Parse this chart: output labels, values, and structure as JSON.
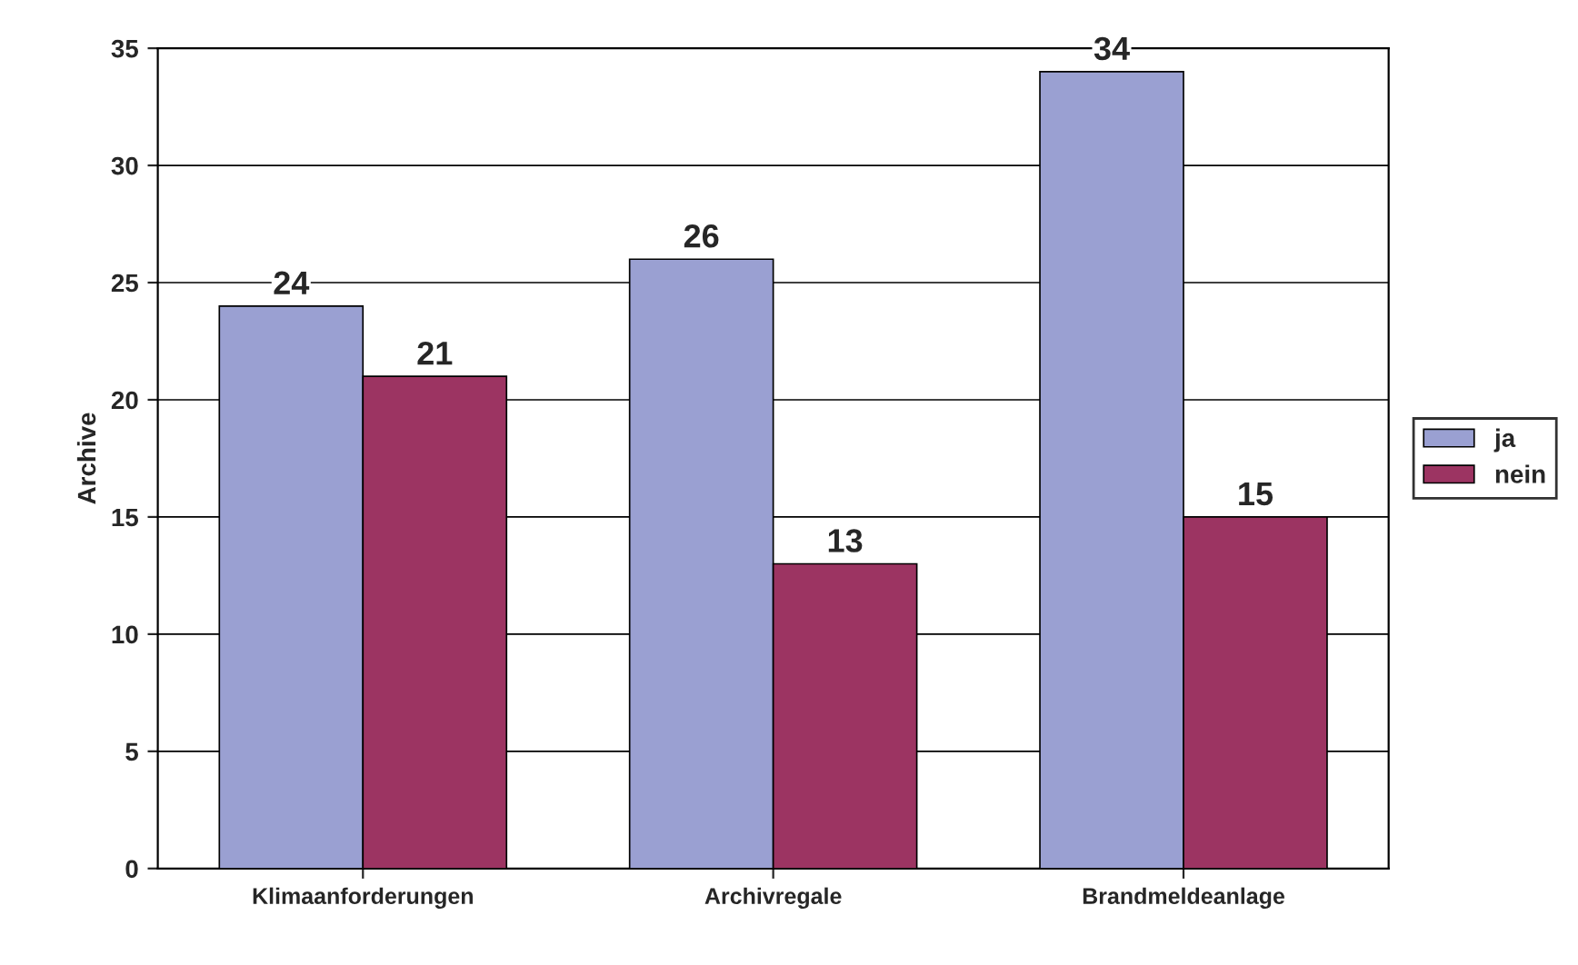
{
  "chart_data": {
    "type": "bar",
    "ylabel": "Archive",
    "categories": [
      "Klimaanforderungen",
      "Archivregale",
      "Brandmeldeanlage"
    ],
    "series": [
      {
        "name": "ja",
        "color": "#9aa0d2",
        "values": [
          24,
          26,
          34
        ]
      },
      {
        "name": "nein",
        "color": "#9c3462",
        "values": [
          21,
          13,
          15
        ]
      }
    ],
    "ylim": [
      0,
      35
    ],
    "yticks": [
      0,
      5,
      10,
      15,
      20,
      25,
      30,
      35
    ],
    "grid": "y",
    "legend": "right",
    "data_labels": true
  }
}
